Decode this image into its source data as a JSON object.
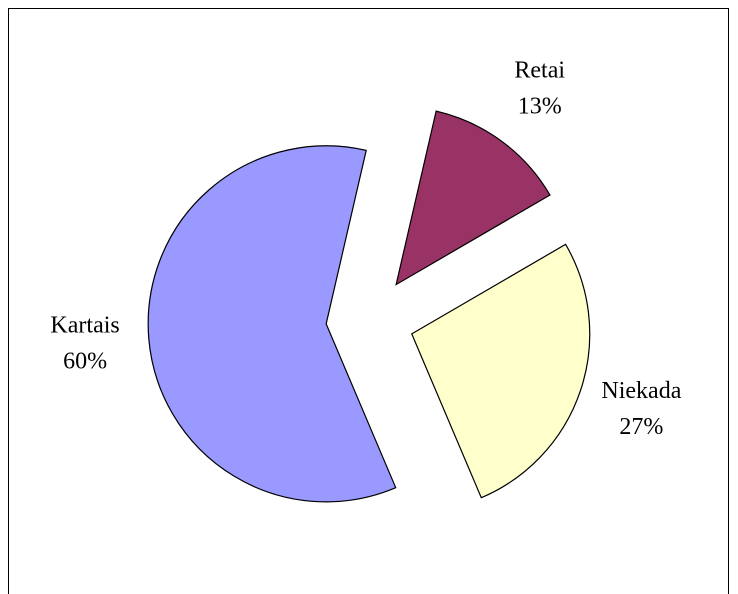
{
  "chart_data": {
    "type": "pie",
    "categories": [
      "Retai",
      "Niekada",
      "Kartais"
    ],
    "values": [
      13,
      27,
      60
    ],
    "value_labels": [
      "13%",
      "27%",
      "60%"
    ],
    "colors": [
      "#993366",
      "#FFFFCC",
      "#9999FF"
    ]
  }
}
